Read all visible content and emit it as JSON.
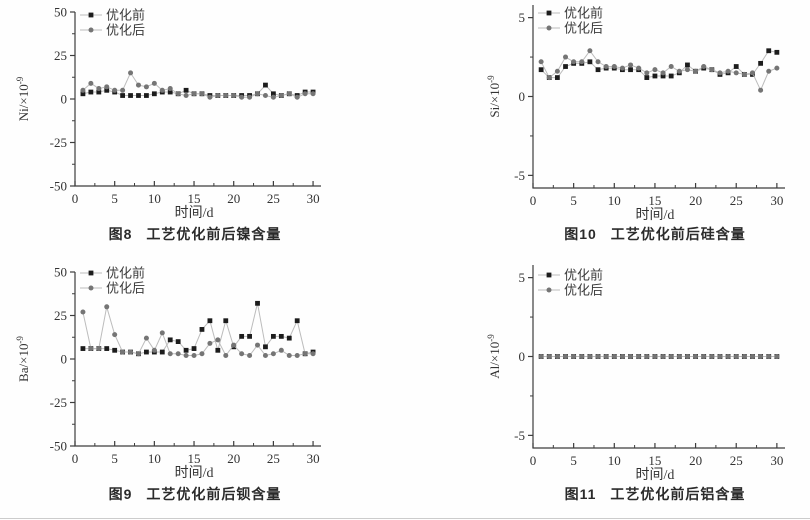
{
  "legend": {
    "before_label": "优化前",
    "after_label": "优化后"
  },
  "colors": {
    "series_before": "#1c1c1c",
    "series_after": "#757575",
    "connector": "#bcbcbc",
    "axis": "#3d3d3d",
    "text": "#333333"
  },
  "chart_data": [
    {
      "id": "fig8",
      "type": "line",
      "caption_no": "图8",
      "caption_title": "工艺优化前后镍含量",
      "xlabel": "时间/d",
      "ylabel_base": "Ni/×10",
      "ylabel_sup": "-9",
      "xlim": [
        0,
        31
      ],
      "ylim": [
        -50,
        50
      ],
      "xticks": [
        0,
        5,
        10,
        15,
        20,
        25,
        30
      ],
      "yticks": [
        50,
        25,
        0,
        -25,
        -50
      ],
      "grid": false,
      "legend_position": "top-left",
      "x": [
        1,
        2,
        3,
        4,
        5,
        6,
        7,
        8,
        9,
        10,
        11,
        12,
        13,
        14,
        15,
        16,
        17,
        18,
        19,
        20,
        21,
        22,
        23,
        24,
        25,
        26,
        27,
        28,
        29,
        30
      ],
      "series": [
        {
          "name": "优化前",
          "marker": "square",
          "color": "#1c1c1c",
          "values": [
            3,
            4,
            4,
            5,
            4,
            2,
            2,
            2,
            2,
            3,
            4,
            4,
            3,
            5,
            3,
            3,
            2,
            2,
            2,
            2,
            2,
            2,
            3,
            8,
            3,
            2,
            3,
            2,
            4,
            4
          ]
        },
        {
          "name": "优化后",
          "marker": "circle",
          "color": "#757575",
          "values": [
            5,
            9,
            6,
            7,
            5,
            5,
            15,
            8,
            7,
            9,
            5,
            6,
            3,
            2,
            3,
            3,
            1,
            2,
            2,
            2,
            1,
            1,
            3,
            2,
            1,
            2,
            3,
            1,
            3,
            3
          ]
        }
      ]
    },
    {
      "id": "fig10",
      "type": "line",
      "caption_no": "图10",
      "caption_title": "工艺优化前后硅含量",
      "xlabel": "时间/d",
      "ylabel_base": "Si/×10",
      "ylabel_sup": "-9",
      "xlim": [
        0,
        31
      ],
      "ylim": [
        -5.8,
        5.8
      ],
      "xticks": [
        0,
        5,
        10,
        15,
        20,
        25,
        30
      ],
      "yticks": [
        5,
        0,
        -5
      ],
      "grid": false,
      "legend_position": "top-left",
      "x": [
        1,
        2,
        3,
        4,
        5,
        6,
        7,
        8,
        9,
        10,
        11,
        12,
        13,
        14,
        15,
        16,
        17,
        18,
        19,
        20,
        21,
        22,
        23,
        24,
        25,
        26,
        27,
        28,
        29,
        30
      ],
      "series": [
        {
          "name": "优化前",
          "marker": "square",
          "color": "#1c1c1c",
          "values": [
            1.7,
            1.2,
            1.2,
            1.9,
            2.1,
            2.1,
            2.2,
            1.7,
            1.8,
            1.8,
            1.7,
            1.7,
            1.7,
            1.2,
            1.3,
            1.3,
            1.3,
            1.5,
            2.0,
            1.6,
            1.8,
            1.7,
            1.4,
            1.5,
            1.9,
            1.4,
            1.4,
            2.1,
            2.9,
            2.8
          ]
        },
        {
          "name": "优化后",
          "marker": "circle",
          "color": "#757575",
          "values": [
            2.2,
            1.2,
            1.6,
            2.5,
            2.2,
            2.2,
            2.9,
            2.2,
            1.9,
            1.9,
            1.8,
            2.0,
            1.8,
            1.5,
            1.7,
            1.5,
            1.9,
            1.6,
            1.7,
            1.6,
            1.9,
            1.7,
            1.5,
            1.6,
            1.5,
            1.4,
            1.5,
            0.4,
            1.6,
            1.8
          ]
        }
      ]
    },
    {
      "id": "fig9",
      "type": "line",
      "caption_no": "图9",
      "caption_title": "工艺优化前后钡含量",
      "xlabel": "时间/d",
      "ylabel_base": "Ba/×10",
      "ylabel_sup": "-9",
      "xlim": [
        0,
        31
      ],
      "ylim": [
        -50,
        50
      ],
      "xticks": [
        0,
        5,
        10,
        15,
        20,
        25,
        30
      ],
      "yticks": [
        50,
        25,
        0,
        -25,
        -50
      ],
      "grid": false,
      "legend_position": "top-left",
      "x": [
        1,
        2,
        3,
        4,
        5,
        6,
        7,
        8,
        9,
        10,
        11,
        12,
        13,
        14,
        15,
        16,
        17,
        18,
        19,
        20,
        21,
        22,
        23,
        24,
        25,
        26,
        27,
        28,
        29,
        30
      ],
      "series": [
        {
          "name": "优化前",
          "marker": "square",
          "color": "#1c1c1c",
          "values": [
            6,
            6,
            6,
            6,
            5,
            4,
            4,
            3,
            4,
            4,
            4,
            11,
            10,
            5,
            6,
            17,
            22,
            5,
            22,
            7,
            13,
            13,
            32,
            7,
            13,
            13,
            12,
            22,
            3,
            4
          ]
        },
        {
          "name": "优化后",
          "marker": "circle",
          "color": "#757575",
          "values": [
            27,
            6,
            6,
            30,
            14,
            4,
            4,
            3,
            12,
            5,
            15,
            3,
            3,
            2,
            2,
            3,
            9,
            11,
            2,
            8,
            3,
            2,
            8,
            2,
            3,
            5,
            2,
            2,
            3,
            3
          ]
        }
      ]
    },
    {
      "id": "fig11",
      "type": "line",
      "caption_no": "图11",
      "caption_title": "工艺优化前后铝含量",
      "xlabel": "时间/d",
      "ylabel_base": "Al/×10",
      "ylabel_sup": "-9",
      "xlim": [
        0,
        31
      ],
      "ylim": [
        -5.8,
        5.8
      ],
      "xticks": [
        0,
        5,
        10,
        15,
        20,
        25,
        30
      ],
      "yticks": [
        5,
        0,
        -5
      ],
      "grid": false,
      "legend_position": "top-left",
      "x": [
        1,
        2,
        3,
        4,
        5,
        6,
        7,
        8,
        9,
        10,
        11,
        12,
        13,
        14,
        15,
        16,
        17,
        18,
        19,
        20,
        21,
        22,
        23,
        24,
        25,
        26,
        27,
        28,
        29,
        30
      ],
      "series": [
        {
          "name": "优化前",
          "marker": "square",
          "color": "#1c1c1c",
          "values": [
            0,
            0,
            0,
            0,
            0,
            0,
            0,
            0,
            0,
            0,
            0,
            0,
            0,
            0,
            0,
            0,
            0,
            0,
            0,
            0,
            0,
            0,
            0,
            0,
            0,
            0,
            0,
            0,
            0,
            0
          ]
        },
        {
          "name": "优化后",
          "marker": "circle",
          "color": "#757575",
          "values": [
            0,
            0,
            0,
            0,
            0,
            0,
            0,
            0,
            0,
            0,
            0,
            0,
            0,
            0,
            0,
            0,
            0,
            0,
            0,
            0,
            0,
            0,
            0,
            0,
            0,
            0,
            0,
            0,
            0,
            0
          ]
        }
      ]
    }
  ]
}
